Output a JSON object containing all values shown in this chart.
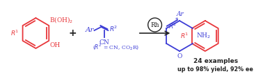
{
  "bg_color": "#ffffff",
  "red_color": "#e8363a",
  "blue_color": "#3c3cd6",
  "black_color": "#1a1a1a",
  "dark_color": "#222222",
  "reactant1_text": "B(OH)₂",
  "reactant1_sub": "R¹",
  "reactant1_OH": "OH",
  "reactant2_Ar": "Ar",
  "reactant2_R2": "R²",
  "reactant2_CN": "CN",
  "reactant2_sub": "(R² = CN, CO₂R)",
  "catalyst": "Rh",
  "product_Ar": "Ar",
  "product_R2": "R²",
  "product_R1": "R¹",
  "product_NH2": "NH₂",
  "product_O": "O",
  "label1": "24 examples",
  "label2": "up to 98% yield, 92% ee",
  "plus_sign": "+",
  "fig_width": 3.78,
  "fig_height": 1.1,
  "dpi": 100
}
